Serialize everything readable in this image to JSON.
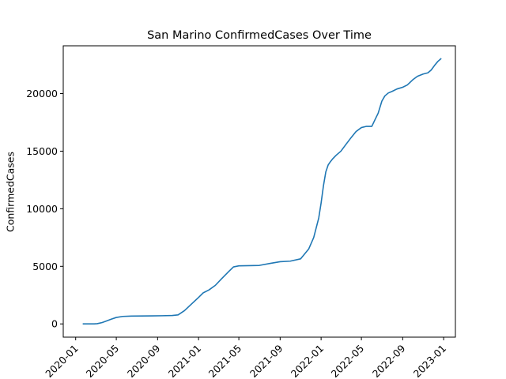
{
  "chart_data": {
    "type": "line",
    "title": "San Marino  ConfirmedCases Over Time",
    "xlabel": "",
    "ylabel": "ConfirmedCases",
    "x_ticks": [
      "2020-01-01",
      "2020-05-01",
      "2020-09-01",
      "2021-01-01",
      "2021-05-01",
      "2021-09-01",
      "2022-01-01",
      "2022-05-01",
      "2022-09-01",
      "2023-01-01"
    ],
    "x_tick_labels": [
      "2020-01",
      "2020-05",
      "2020-09",
      "2021-01",
      "2021-05",
      "2021-09",
      "2022-01",
      "2022-05",
      "2022-09",
      "2023-01"
    ],
    "y_ticks": [
      0,
      5000,
      10000,
      15000,
      20000
    ],
    "y_tick_labels": [
      "0",
      "5000",
      "10000",
      "15000",
      "20000"
    ],
    "xlim": [
      "2019-11-25",
      "2023-02-05"
    ],
    "ylim": [
      -1150,
      24150
    ],
    "grid": false,
    "legend": "none",
    "color": "#1f77b4",
    "series": [
      {
        "x": [
          "2020-01-22",
          "2020-02-25",
          "2020-03-05",
          "2020-03-20",
          "2020-04-01",
          "2020-04-15",
          "2020-05-01",
          "2020-05-20",
          "2020-06-15",
          "2020-07-15",
          "2020-08-15",
          "2020-09-15",
          "2020-10-15",
          "2020-11-01",
          "2020-11-20",
          "2020-12-10",
          "2021-01-01",
          "2021-01-15",
          "2021-02-01",
          "2021-02-20",
          "2021-03-10",
          "2021-04-01",
          "2021-04-15",
          "2021-05-01",
          "2021-06-01",
          "2021-07-01",
          "2021-08-01",
          "2021-09-01",
          "2021-10-01",
          "2021-11-01",
          "2021-11-25",
          "2021-12-10",
          "2021-12-25",
          "2022-01-01",
          "2022-01-08",
          "2022-01-15",
          "2022-01-22",
          "2022-01-29",
          "2022-02-05",
          "2022-02-15",
          "2022-03-01",
          "2022-03-15",
          "2022-04-01",
          "2022-04-15",
          "2022-05-01",
          "2022-05-15",
          "2022-06-01",
          "2022-06-10",
          "2022-06-20",
          "2022-07-01",
          "2022-07-10",
          "2022-07-20",
          "2022-08-01",
          "2022-08-15",
          "2022-09-01",
          "2022-09-15",
          "2022-10-01",
          "2022-10-15",
          "2022-11-01",
          "2022-11-15",
          "2022-11-25",
          "2022-12-05",
          "2022-12-15",
          "2022-12-25"
        ],
        "y": [
          0,
          0,
          20,
          120,
          250,
          400,
          560,
          650,
          680,
          690,
          700,
          710,
          730,
          780,
          1150,
          1700,
          2300,
          2700,
          2950,
          3350,
          3900,
          4550,
          4950,
          5040,
          5060,
          5080,
          5250,
          5400,
          5450,
          5650,
          6500,
          7500,
          9200,
          10500,
          12000,
          13200,
          13800,
          14100,
          14350,
          14650,
          15000,
          15550,
          16200,
          16700,
          17050,
          17150,
          17150,
          17700,
          18300,
          19350,
          19800,
          20050,
          20200,
          20400,
          20550,
          20750,
          21200,
          21500,
          21700,
          21800,
          22050,
          22450,
          22800,
          23050
        ]
      }
    ]
  }
}
